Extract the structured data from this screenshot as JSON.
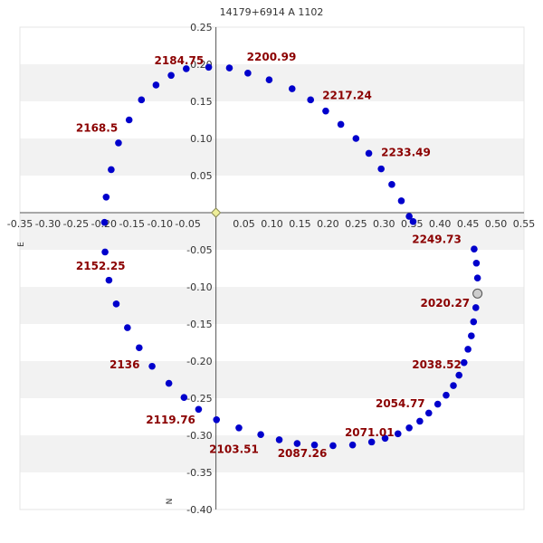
{
  "chart_data": {
    "type": "scatter",
    "title": "14179+6914 A  1102",
    "xlabel": "",
    "ylabel": "",
    "side_labels": {
      "east": "E",
      "north": "N"
    },
    "xlim": [
      -0.35,
      0.55
    ],
    "ylim": [
      -0.4,
      0.25
    ],
    "x_ticks": [
      "-0.35",
      "-0.30",
      "-0.25",
      "-0.20",
      "-0.15",
      "-0.10",
      "-0.05",
      "0.05",
      "0.10",
      "0.15",
      "0.20",
      "0.25",
      "0.30",
      "0.35",
      "0.40",
      "0.45",
      "0.50",
      "0.55"
    ],
    "x_tick_values": [
      -0.35,
      -0.3,
      -0.25,
      -0.2,
      -0.15,
      -0.1,
      -0.05,
      0.05,
      0.1,
      0.15,
      0.2,
      0.25,
      0.3,
      0.35,
      0.4,
      0.45,
      0.5,
      0.55
    ],
    "y_ticks": [
      "0.25",
      "0.20",
      "0.15",
      "0.10",
      "0.05",
      "-0.05",
      "-0.10",
      "-0.15",
      "-0.20",
      "-0.25",
      "-0.30",
      "-0.35",
      "-0.40"
    ],
    "y_tick_values": [
      0.25,
      0.2,
      0.15,
      0.1,
      0.05,
      -0.05,
      -0.1,
      -0.15,
      -0.2,
      -0.25,
      -0.3,
      -0.35,
      -0.4
    ],
    "grid": "alternating horizontal bands",
    "colors": {
      "point": "#0000cc",
      "label": "#8b0000",
      "band": "#f2f2f2",
      "axis": "#555555",
      "current": "#cccccc",
      "origin": "#eeee99"
    },
    "primary": {
      "x": 0,
      "y": 0
    },
    "current_point": {
      "x": 0.467,
      "y": -0.109
    },
    "points": [
      {
        "x": 0.461,
        "y": -0.049
      },
      {
        "x": 0.465,
        "y": -0.068
      },
      {
        "x": 0.467,
        "y": -0.088
      },
      {
        "x": 0.464,
        "y": -0.128
      },
      {
        "x": 0.46,
        "y": -0.147
      },
      {
        "x": 0.456,
        "y": -0.166
      },
      {
        "x": 0.45,
        "y": -0.184
      },
      {
        "x": 0.443,
        "y": -0.202
      },
      {
        "x": 0.434,
        "y": -0.219
      },
      {
        "x": 0.424,
        "y": -0.233
      },
      {
        "x": 0.411,
        "y": -0.246
      },
      {
        "x": 0.396,
        "y": -0.258
      },
      {
        "x": 0.38,
        "y": -0.27
      },
      {
        "x": 0.364,
        "y": -0.281
      },
      {
        "x": 0.345,
        "y": -0.29
      },
      {
        "x": 0.325,
        "y": -0.298
      },
      {
        "x": 0.302,
        "y": -0.304
      },
      {
        "x": 0.278,
        "y": -0.309
      },
      {
        "x": 0.244,
        "y": -0.313
      },
      {
        "x": 0.209,
        "y": -0.314
      },
      {
        "x": 0.176,
        "y": -0.313
      },
      {
        "x": 0.145,
        "y": -0.311
      },
      {
        "x": 0.113,
        "y": -0.306
      },
      {
        "x": 0.08,
        "y": -0.299
      },
      {
        "x": 0.041,
        "y": -0.29
      },
      {
        "x": 0.001,
        "y": -0.279
      },
      {
        "x": -0.031,
        "y": -0.265
      },
      {
        "x": -0.057,
        "y": -0.249
      },
      {
        "x": -0.084,
        "y": -0.23
      },
      {
        "x": -0.114,
        "y": -0.207
      },
      {
        "x": -0.137,
        "y": -0.182
      },
      {
        "x": -0.158,
        "y": -0.155
      },
      {
        "x": -0.178,
        "y": -0.123
      },
      {
        "x": -0.191,
        "y": -0.091
      },
      {
        "x": -0.198,
        "y": -0.053
      },
      {
        "x": -0.199,
        "y": -0.013
      },
      {
        "x": -0.196,
        "y": 0.021
      },
      {
        "x": -0.187,
        "y": 0.058
      },
      {
        "x": -0.174,
        "y": 0.094
      },
      {
        "x": -0.155,
        "y": 0.125
      },
      {
        "x": -0.133,
        "y": 0.152
      },
      {
        "x": -0.107,
        "y": 0.172
      },
      {
        "x": -0.08,
        "y": 0.185
      },
      {
        "x": -0.053,
        "y": 0.194
      },
      {
        "x": -0.013,
        "y": 0.196
      },
      {
        "x": 0.024,
        "y": 0.195
      },
      {
        "x": 0.057,
        "y": 0.188
      },
      {
        "x": 0.095,
        "y": 0.179
      },
      {
        "x": 0.136,
        "y": 0.167
      },
      {
        "x": 0.169,
        "y": 0.152
      },
      {
        "x": 0.196,
        "y": 0.137
      },
      {
        "x": 0.223,
        "y": 0.119
      },
      {
        "x": 0.25,
        "y": 0.1
      },
      {
        "x": 0.273,
        "y": 0.08
      },
      {
        "x": 0.295,
        "y": 0.059
      },
      {
        "x": 0.314,
        "y": 0.038
      },
      {
        "x": 0.331,
        "y": 0.016
      },
      {
        "x": 0.345,
        "y": -0.005
      },
      {
        "x": 0.352,
        "y": -0.012
      }
    ],
    "annotations": [
      {
        "text": "2200.99",
        "x": 0.055,
        "y": 0.205
      },
      {
        "text": "2184.75",
        "x": -0.11,
        "y": 0.2
      },
      {
        "text": "2217.24",
        "x": 0.19,
        "y": 0.153
      },
      {
        "text": "2168.5",
        "x": -0.25,
        "y": 0.109
      },
      {
        "text": "2233.49",
        "x": 0.295,
        "y": 0.076
      },
      {
        "text": "2249.73",
        "x": 0.35,
        "y": -0.041
      },
      {
        "text": "2020.27",
        "x": 0.365,
        "y": -0.127
      },
      {
        "text": "2152.25",
        "x": -0.25,
        "y": -0.077
      },
      {
        "text": "2038.52",
        "x": 0.35,
        "y": -0.21
      },
      {
        "text": "2136",
        "x": -0.19,
        "y": -0.21
      },
      {
        "text": "2054.77",
        "x": 0.285,
        "y": -0.262
      },
      {
        "text": "2119.76",
        "x": -0.125,
        "y": -0.284
      },
      {
        "text": "2071.01",
        "x": 0.23,
        "y": -0.301
      },
      {
        "text": "2103.51",
        "x": -0.012,
        "y": -0.324
      },
      {
        "text": "2087.26",
        "x": 0.11,
        "y": -0.329
      }
    ]
  }
}
